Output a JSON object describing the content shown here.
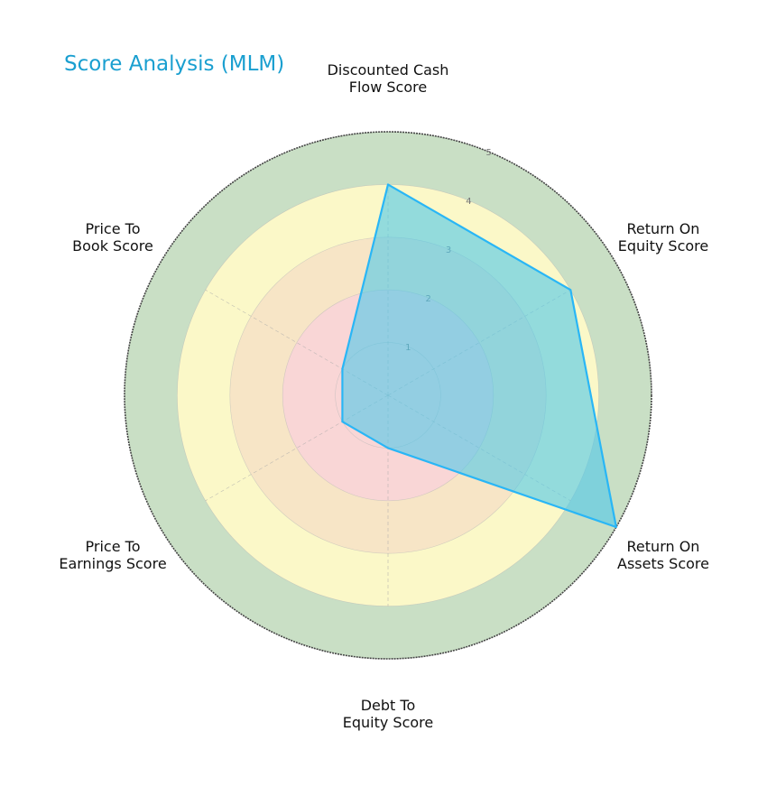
{
  "chart_data": {
    "type": "radar",
    "title": "Score Analysis (MLM)",
    "categories": [
      "Discounted Cash Flow Score",
      "Return On Equity Score",
      "Return On Assets Score",
      "Debt To Equity Score",
      "Price To Earnings Score",
      "Price To Book Score"
    ],
    "category_lines": [
      [
        "Discounted Cash",
        "Flow Score"
      ],
      [
        "Return On",
        "Equity Score"
      ],
      [
        "Return On",
        "Assets Score"
      ],
      [
        "Debt To",
        "Equity Score"
      ],
      [
        "Price To",
        "Earnings Score"
      ],
      [
        "Price To",
        "Book Score"
      ]
    ],
    "series": [
      {
        "name": "MLM",
        "values": [
          4,
          4,
          5,
          1,
          1,
          1
        ]
      }
    ],
    "rlim": [
      0,
      5
    ],
    "r_ticks": [
      1,
      2,
      3,
      4,
      5
    ],
    "bands": [
      {
        "from": 0,
        "to": 2,
        "color": "#f9d6d6"
      },
      {
        "from": 2,
        "to": 3,
        "color": "#f7e5c6"
      },
      {
        "from": 3,
        "to": 4,
        "color": "#fbf8c8"
      },
      {
        "from": 4,
        "to": 5,
        "color": "#c9dfc5"
      }
    ],
    "colors": {
      "title": "#1a9fd0",
      "line": "#29b6f6",
      "fill": "#4fc8ea"
    }
  }
}
